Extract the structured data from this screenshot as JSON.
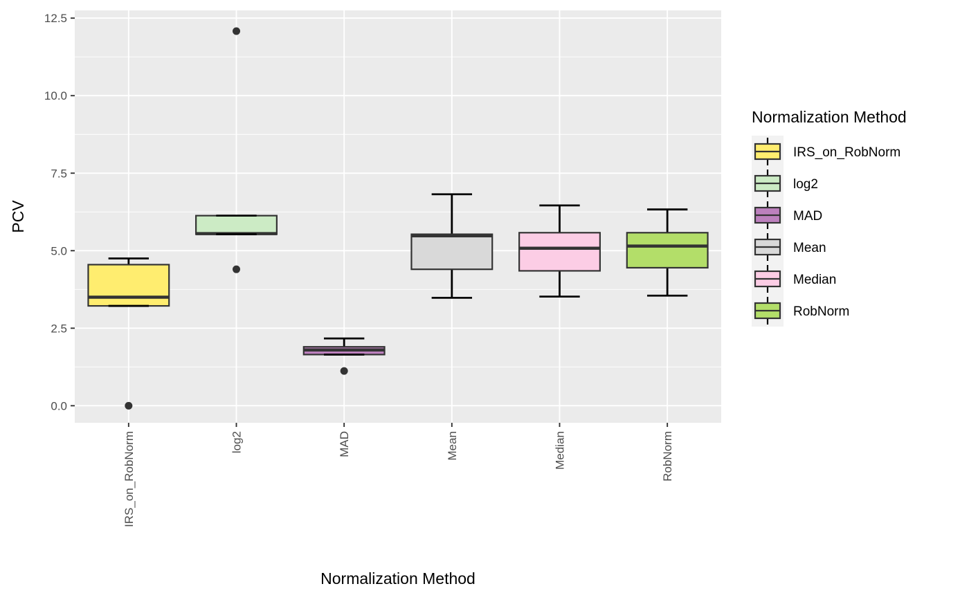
{
  "chart_data": {
    "type": "box",
    "xlabel": "Normalization Method",
    "ylabel": "PCV",
    "ylim": [
      -0.55,
      12.75
    ],
    "y_ticks": [
      0.0,
      2.5,
      5.0,
      7.5,
      10.0,
      12.5
    ],
    "y_tick_labels": [
      "0.0",
      "2.5",
      "5.0",
      "7.5",
      "10.0",
      "12.5"
    ],
    "grid": true,
    "legend": {
      "title": "Normalization Method",
      "position": "right"
    },
    "categories": [
      "IRS_on_RobNorm",
      "log2",
      "MAD",
      "Mean",
      "Median",
      "RobNorm"
    ],
    "series": [
      {
        "name": "IRS_on_RobNorm",
        "color": "#FFED6F",
        "whisker_low": 3.22,
        "q1": 3.22,
        "median": 3.5,
        "q3": 4.55,
        "whisker_high": 4.75,
        "outliers": [
          0.0
        ]
      },
      {
        "name": "log2",
        "color": "#CCEBC5",
        "whisker_low": 5.53,
        "q1": 5.53,
        "median": 5.55,
        "q3": 6.13,
        "whisker_high": 6.13,
        "outliers": [
          12.08,
          4.4
        ]
      },
      {
        "name": "MAD",
        "color": "#BC80BD",
        "whisker_low": 1.65,
        "q1": 1.65,
        "median": 1.8,
        "q3": 1.9,
        "whisker_high": 2.17,
        "outliers": [
          1.12
        ]
      },
      {
        "name": "Mean",
        "color": "#D9D9D9",
        "whisker_low": 3.48,
        "q1": 4.4,
        "median": 5.48,
        "q3": 5.53,
        "whisker_high": 6.82,
        "outliers": []
      },
      {
        "name": "Median",
        "color": "#FCCDE5",
        "whisker_low": 3.52,
        "q1": 4.35,
        "median": 5.08,
        "q3": 5.58,
        "whisker_high": 6.46,
        "outliers": []
      },
      {
        "name": "RobNorm",
        "color": "#B3DE69",
        "whisker_low": 3.55,
        "q1": 4.45,
        "median": 5.15,
        "q3": 5.58,
        "whisker_high": 6.33,
        "outliers": []
      }
    ]
  }
}
